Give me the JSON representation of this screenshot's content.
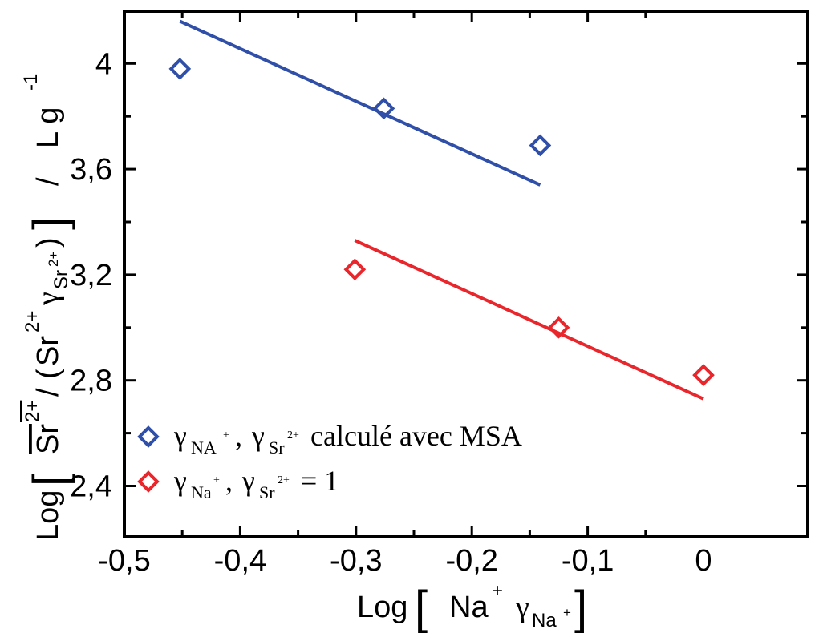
{
  "chart_data": {
    "type": "scatter",
    "xlim": [
      -0.5,
      0.0
    ],
    "ylim": [
      2.2,
      4.2
    ],
    "x_ticks": [
      -0.5,
      -0.4,
      -0.3,
      -0.2,
      -0.1,
      0
    ],
    "x_tick_labels": [
      "-0,5",
      "-0,4",
      "-0,3",
      "-0,2",
      "-0,1",
      "0"
    ],
    "y_ticks": [
      2.4,
      2.8,
      3.2,
      3.6,
      4.0
    ],
    "y_tick_labels": [
      "2,4",
      "2,8",
      "3,2",
      "3,6",
      "4"
    ],
    "xlabel": {
      "prefix": "Log",
      "bracket_open": "[",
      "bracket_close": "]",
      "species": "Na",
      "charge": "+",
      "gamma": "γ",
      "gamma_sub": "Na",
      "gamma_sub_charge": "+"
    },
    "ylabel": {
      "prefix": "Log",
      "bracket_open": "[",
      "bracket_close": "]",
      "resin_species": "Sr",
      "resin_charge": "2+",
      "divider": "/",
      "paren_open": "(",
      "solution_species": "Sr",
      "solution_charge": "2+",
      "gamma": "γ",
      "gamma_sub": "Sr",
      "gamma_sub_charge": "2+",
      "paren_close": ")",
      "unit_sep": "/",
      "unit": "L g",
      "unit_exp": "-1"
    },
    "grid": false,
    "legend_position": "bottom-left",
    "series": [
      {
        "legend": {
          "g1": "γ",
          "s1": "NA",
          "c1": "+",
          "sep": ",",
          "g2": "γ",
          "s2": "Sr",
          "c2": "2+",
          "text": " calculé avec MSA"
        },
        "color": "#2f4fa8",
        "marker": "diamond-open",
        "points": [
          {
            "x": -0.452,
            "y": 3.98
          },
          {
            "x": -0.276,
            "y": 3.83
          },
          {
            "x": -0.141,
            "y": 3.69
          }
        ],
        "fit_line": {
          "x": [
            -0.452,
            -0.141
          ],
          "y": [
            4.16,
            3.54
          ]
        }
      },
      {
        "legend": {
          "g1": "γ",
          "s1": "Na",
          "c1": "+",
          "sep": ",",
          "g2": "γ",
          "s2": "Sr",
          "c2": "2+",
          "text": " = 1"
        },
        "color": "#e8262b",
        "marker": "diamond-open",
        "points": [
          {
            "x": -0.301,
            "y": 3.22
          },
          {
            "x": -0.125,
            "y": 3.0
          },
          {
            "x": 0.0,
            "y": 2.82
          }
        ],
        "fit_line": {
          "x": [
            -0.301,
            0.0
          ],
          "y": [
            3.33,
            2.73
          ]
        }
      }
    ]
  }
}
